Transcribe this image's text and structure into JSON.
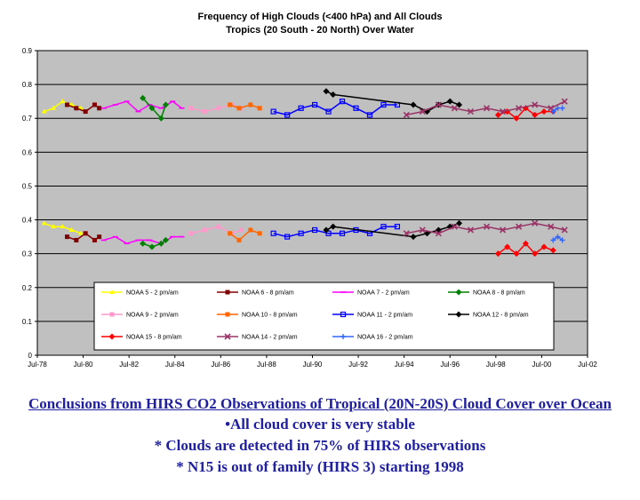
{
  "chart_data": {
    "type": "line",
    "title": "Frequency of High Clouds (<400 hPa) and All Clouds",
    "subtitle": "Tropics (20 South - 20 North) Over Water",
    "xlabel": "",
    "ylabel": "",
    "x_ticks": [
      "Jul-78",
      "Jul-80",
      "Jul-82",
      "Jul-84",
      "Jul-86",
      "Jul-88",
      "Jul-90",
      "Jul-92",
      "Jul-94",
      "Jul-96",
      "Jul-98",
      "Jul-00",
      "Jul-02"
    ],
    "y_ticks": [
      "0",
      "0.1",
      "0.2",
      "0.3",
      "0.4",
      "0.5",
      "0.6",
      "0.7",
      "0.8",
      "0.9"
    ],
    "ylim": [
      0,
      0.9
    ],
    "xlim": [
      1978.5,
      2002.5
    ],
    "grid": true,
    "legend_position": "bottom-inside",
    "series": [
      {
        "name": "NOAA 5 - 2 pm/am",
        "color": "#ffff00",
        "marker": "triangle",
        "x": [
          1978.8,
          1979.2,
          1979.6,
          1980.0,
          1980.4
        ],
        "all": [
          0.72,
          0.73,
          0.75,
          0.74,
          0.73
        ],
        "high": [
          0.39,
          0.38,
          0.38,
          0.37,
          0.36
        ]
      },
      {
        "name": "NOAA 6 - 8 pm/am",
        "color": "#800000",
        "marker": "square",
        "x": [
          1979.8,
          1980.2,
          1980.6,
          1981.0,
          1981.2
        ],
        "all": [
          0.74,
          0.73,
          0.72,
          0.74,
          0.73
        ],
        "high": [
          0.35,
          0.34,
          0.36,
          0.34,
          0.35
        ]
      },
      {
        "name": "NOAA 7 - 2 pm/am",
        "color": "#ff00ff",
        "marker": "dash",
        "x": [
          1981.4,
          1981.9,
          1982.4,
          1982.9,
          1983.4,
          1983.9,
          1984.4,
          1984.8
        ],
        "all": [
          0.73,
          0.74,
          0.75,
          0.72,
          0.74,
          0.73,
          0.75,
          0.73
        ],
        "high": [
          0.34,
          0.35,
          0.33,
          0.34,
          0.34,
          0.33,
          0.35,
          0.35
        ]
      },
      {
        "name": "NOAA 8 - 8 pm/am",
        "color": "#008000",
        "marker": "diamond",
        "x": [
          1983.1,
          1983.5,
          1983.9,
          1984.1
        ],
        "all": [
          0.76,
          0.73,
          0.7,
          0.74
        ],
        "high": [
          0.33,
          0.32,
          0.33,
          0.34
        ]
      },
      {
        "name": "NOAA 9 - 2 pm/am",
        "color": "#ff99cc",
        "marker": "square",
        "x": [
          1985.2,
          1985.8,
          1986.4,
          1987.0,
          1987.4
        ],
        "all": [
          0.73,
          0.72,
          0.73,
          0.74,
          0.73
        ],
        "high": [
          0.36,
          0.37,
          0.38,
          0.36,
          0.37
        ]
      },
      {
        "name": "NOAA 10 - 8 pm/am",
        "color": "#ff6600",
        "marker": "square",
        "x": [
          1986.9,
          1987.3,
          1987.8,
          1988.2
        ],
        "all": [
          0.74,
          0.73,
          0.74,
          0.73
        ],
        "high": [
          0.36,
          0.34,
          0.37,
          0.36
        ]
      },
      {
        "name": "NOAA 11 - 2 pm/am",
        "color": "#0000ff",
        "marker": "square-open",
        "x": [
          1988.8,
          1989.4,
          1990.0,
          1990.6,
          1991.2,
          1991.8,
          1992.4,
          1993.0,
          1993.6,
          1994.2
        ],
        "all": [
          0.72,
          0.71,
          0.73,
          0.74,
          0.72,
          0.75,
          0.73,
          0.71,
          0.74,
          0.74
        ],
        "high": [
          0.36,
          0.35,
          0.36,
          0.37,
          0.36,
          0.36,
          0.37,
          0.36,
          0.38,
          0.38
        ]
      },
      {
        "name": "NOAA 12 - 8 pm/am",
        "color": "#000000",
        "marker": "diamond",
        "x": [
          1991.1,
          1991.4,
          1994.9,
          1995.5,
          1996.0,
          1996.5,
          1996.9
        ],
        "all": [
          0.78,
          0.77,
          0.74,
          0.72,
          0.74,
          0.75,
          0.74
        ],
        "high": [
          0.37,
          0.38,
          0.35,
          0.36,
          0.37,
          0.38,
          0.39
        ]
      },
      {
        "name": "NOAA 15 - 8 pm/am",
        "color": "#ff0000",
        "marker": "diamond",
        "x": [
          1998.6,
          1999.0,
          1999.4,
          1999.8,
          2000.2,
          2000.6,
          2001.0
        ],
        "all": [
          0.71,
          0.72,
          0.7,
          0.73,
          0.71,
          0.72,
          0.72
        ],
        "high": [
          0.3,
          0.32,
          0.3,
          0.33,
          0.3,
          0.32,
          0.31
        ]
      },
      {
        "name": "NOAA 14 - 2 pm/am",
        "color": "#993366",
        "marker": "x",
        "x": [
          1994.6,
          1995.3,
          1996.0,
          1996.7,
          1997.4,
          1998.1,
          1998.8,
          1999.5,
          2000.2,
          2000.9,
          2001.5
        ],
        "all": [
          0.71,
          0.72,
          0.74,
          0.73,
          0.72,
          0.73,
          0.72,
          0.73,
          0.74,
          0.73,
          0.75
        ],
        "high": [
          0.36,
          0.37,
          0.36,
          0.38,
          0.37,
          0.38,
          0.37,
          0.38,
          0.39,
          0.38,
          0.37
        ]
      },
      {
        "name": "NOAA 16 - 2 pm/am",
        "color": "#3366ff",
        "marker": "plus",
        "x": [
          2001.0,
          2001.2,
          2001.4
        ],
        "all": [
          0.72,
          0.73,
          0.73
        ],
        "high": [
          0.34,
          0.35,
          0.34
        ]
      }
    ]
  },
  "conclusions": {
    "heading": "Conclusions from HIRS CO2 Observations of Tropical (20N-20S) Cloud Cover over Ocean",
    "bullets": [
      "•All cloud cover is very stable",
      "* Clouds are detected in 75% of HIRS observations",
      "* N15 is out of family (HIRS 3) starting 1998"
    ]
  }
}
